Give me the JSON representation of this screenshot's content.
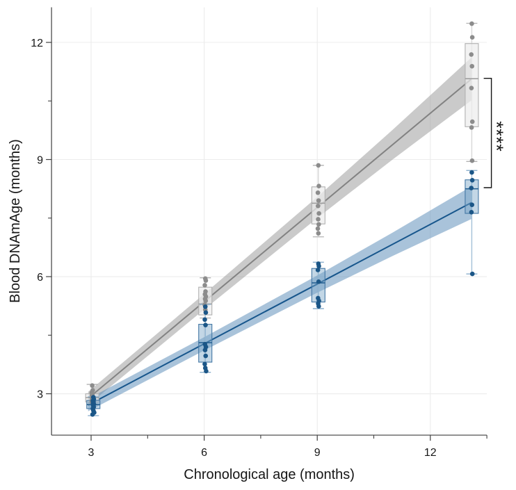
{
  "chart_data": {
    "type": "scatter",
    "title": "",
    "xlabel": "Chronological age (months)",
    "ylabel": "Blood DNAmAge (months)",
    "x_ticks": [
      3,
      6,
      9,
      12
    ],
    "x_minor_ticks": [
      4.5,
      7.5,
      10.5,
      13.5
    ],
    "y_ticks": [
      3,
      6,
      9,
      12
    ],
    "y_minor_ticks": [
      4.5,
      7.5,
      10.5
    ],
    "xlim": [
      1.95,
      13.5
    ],
    "ylim": [
      1.94,
      12.9
    ],
    "grid": true,
    "legend": "none",
    "colors": {
      "background": "#ffffff",
      "grid": "#ececec",
      "axis": "#3f3f3f",
      "tick_label": "#161616",
      "axis_title": "#161616",
      "significance": "#141414"
    },
    "significance": {
      "label": "****",
      "x_bracket": 13.62,
      "y_top": 11.08,
      "y_bottom": 8.28
    },
    "series": [
      {
        "name": "gray-group",
        "colors": {
          "point": "#8c8c8c",
          "line": "#828282",
          "band": "#9f9f9f",
          "band_opacity": 0.55,
          "box_fill": "#ededed",
          "box_fill_opacity": 0.72,
          "box_stroke": "#b0b0b0",
          "median": "#9a9a9a",
          "whisker": "#d8d8d8",
          "cap": "#b2b2b2"
        },
        "regression": {
          "x": [
            2.92,
            13.1
          ],
          "y": [
            2.88,
            11.07
          ]
        },
        "band": {
          "x": [
            2.92,
            6,
            9,
            11,
            13.1
          ],
          "half_width": [
            0.17,
            0.2,
            0.27,
            0.38,
            0.55
          ]
        },
        "clusters": [
          {
            "x": 3.03,
            "points": [
              3.21,
              3.09,
              3.03,
              2.99,
              2.96,
              2.92,
              2.89,
              2.86,
              2.82,
              2.78
            ],
            "box": {
              "q1": 2.79,
              "median": 2.9,
              "q3": 3.0,
              "whisker_low": 2.74,
              "whisker_high": 3.24
            }
          },
          {
            "x": 6.03,
            "points": [
              5.95,
              5.9,
              5.78,
              5.62,
              5.55,
              5.49,
              5.43,
              5.38,
              5.28,
              5.15
            ],
            "box": {
              "q1": 5.02,
              "median": 5.3,
              "q3": 5.73,
              "whisker_low": 4.94,
              "whisker_high": 5.97
            }
          },
          {
            "x": 9.03,
            "points": [
              8.85,
              8.32,
              8.15,
              7.95,
              7.81,
              7.62,
              7.47,
              7.34,
              7.23,
              7.11
            ],
            "box": {
              "q1": 7.35,
              "median": 7.88,
              "q3": 8.3,
              "whisker_low": 7.02,
              "whisker_high": 8.85
            }
          },
          {
            "x": 13.1,
            "points": [
              12.48,
              12.13,
              11.69,
              11.39,
              10.83,
              9.97,
              9.82,
              8.97
            ],
            "box": {
              "q1": 9.84,
              "median": 11.07,
              "q3": 11.97,
              "whisker_low": 8.95,
              "whisker_high": 12.49
            }
          }
        ]
      },
      {
        "name": "blue-group",
        "colors": {
          "point": "#1b5687",
          "line": "#17568c",
          "band": "#5b8cb8",
          "band_opacity": 0.52,
          "box_fill": "#7aa6c8",
          "box_fill_opacity": 0.45,
          "box_stroke": "#4377a4",
          "median": "#1f5c8e",
          "whisker": "#a3c0d7",
          "cap": "#7fa7c8"
        },
        "regression": {
          "x": [
            2.92,
            13.1
          ],
          "y": [
            2.71,
            7.9
          ]
        },
        "band": {
          "x": [
            2.92,
            6,
            9,
            11,
            13.1
          ],
          "half_width": [
            0.16,
            0.17,
            0.22,
            0.3,
            0.42
          ]
        },
        "clusters": [
          {
            "x": 3.06,
            "points": [
              2.91,
              2.86,
              2.82,
              2.79,
              2.76,
              2.73,
              2.7,
              2.66,
              2.62,
              2.57,
              2.52,
              2.47
            ],
            "box": {
              "q1": 2.62,
              "median": 2.72,
              "q3": 2.83,
              "whisker_low": 2.44,
              "whisker_high": 2.92
            }
          },
          {
            "x": 6.03,
            "points": [
              5.23,
              5.08,
              4.9,
              4.76,
              4.27,
              4.2,
              4.12,
              3.97,
              3.76,
              3.66,
              3.58
            ],
            "box": {
              "q1": 3.81,
              "median": 4.31,
              "q3": 4.78,
              "whisker_low": 3.55,
              "whisker_high": 5.29
            }
          },
          {
            "x": 9.03,
            "points": [
              6.33,
              6.27,
              6.17,
              5.87,
              5.45,
              5.38,
              5.31,
              5.24
            ],
            "box": {
              "q1": 5.35,
              "median": 5.84,
              "q3": 6.21,
              "whisker_low": 5.18,
              "whisker_high": 6.37
            }
          },
          {
            "x": 13.1,
            "points": [
              8.67,
              8.47,
              8.27,
              7.84,
              7.65,
              6.07
            ],
            "box": {
              "q1": 7.62,
              "median": 8.25,
              "q3": 8.48,
              "whisker_low": 6.07,
              "whisker_high": 8.72
            }
          }
        ]
      }
    ]
  }
}
